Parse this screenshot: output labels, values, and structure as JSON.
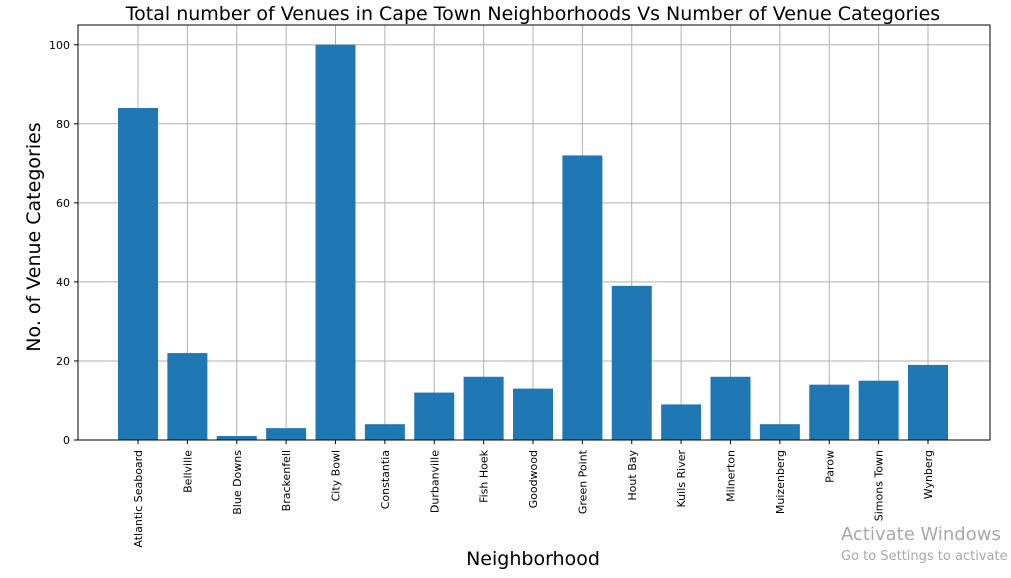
{
  "chart_data": {
    "type": "bar",
    "title": "Total number of Venues in Cape Town Neighborhoods Vs Number of Venue Categories",
    "xlabel": "Neighborhood",
    "ylabel": "No. of Venue Categories",
    "categories": [
      "Atlantic Seaboard",
      "Bellville",
      "Blue Downs",
      "Brackenfell",
      "City Bowl",
      "Constantia",
      "Durbanville",
      "Fish Hoek",
      "Goodwood",
      "Green Point",
      "Hout Bay",
      "Kuils River",
      "Milnerton",
      "Muizenberg",
      "Parow",
      "Simons Town",
      "Wynberg"
    ],
    "values": [
      84,
      22,
      1,
      3,
      100,
      4,
      12,
      16,
      13,
      72,
      39,
      9,
      16,
      4,
      14,
      15,
      19
    ],
    "ylim": [
      0,
      105
    ],
    "yticks": [
      0,
      20,
      40,
      60,
      80,
      100
    ],
    "grid": true,
    "bar_color": "#1f77b4"
  },
  "watermark": {
    "title": "Activate Windows",
    "subtitle": "Go to Settings to activate"
  }
}
